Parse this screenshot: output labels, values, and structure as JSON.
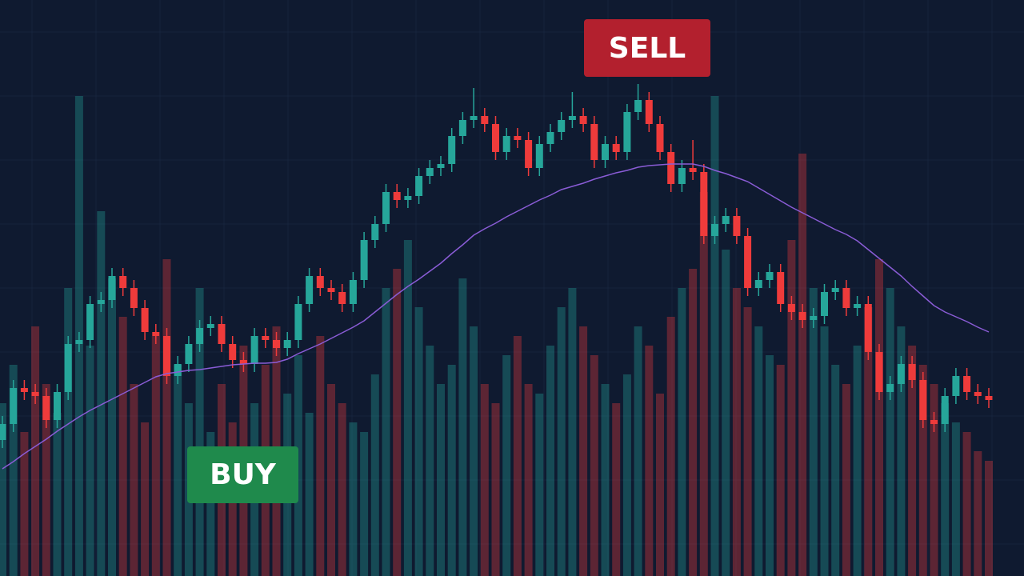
{
  "chart_data": {
    "type": "candlestick",
    "up_color": "#26a69a",
    "down_color": "#ef3b3b",
    "grid": true,
    "grid_color": "#16233c",
    "ylim": [
      0,
      720
    ],
    "y2lim": [
      0,
      600
    ],
    "open": [
      170,
      190,
      235,
      230,
      225,
      195,
      230,
      290,
      295,
      340,
      345,
      375,
      360,
      335,
      305,
      300,
      250,
      265,
      290,
      310,
      315,
      290,
      270,
      265,
      300,
      295,
      285,
      295,
      340,
      375,
      360,
      355,
      340,
      370,
      420,
      440,
      480,
      470,
      475,
      500,
      510,
      515,
      550,
      570,
      575,
      565,
      530,
      550,
      545,
      510,
      540,
      555,
      570,
      575,
      565,
      520,
      540,
      530,
      580,
      595,
      565,
      530,
      490,
      510,
      505,
      425,
      440,
      450,
      425,
      360,
      370,
      380,
      340,
      330,
      320,
      325,
      355,
      360,
      335,
      340,
      280,
      230,
      240,
      265,
      245,
      195,
      190,
      225,
      250,
      230,
      225
    ],
    "high": [
      200,
      245,
      245,
      240,
      235,
      240,
      300,
      305,
      350,
      355,
      385,
      385,
      370,
      345,
      315,
      310,
      275,
      300,
      320,
      325,
      325,
      300,
      280,
      310,
      310,
      305,
      305,
      350,
      385,
      385,
      370,
      365,
      380,
      430,
      450,
      490,
      490,
      485,
      510,
      520,
      525,
      560,
      580,
      610,
      585,
      575,
      560,
      560,
      555,
      550,
      565,
      580,
      605,
      585,
      575,
      550,
      550,
      590,
      615,
      605,
      575,
      540,
      520,
      545,
      515,
      450,
      460,
      460,
      435,
      380,
      390,
      390,
      350,
      340,
      335,
      365,
      370,
      370,
      350,
      350,
      290,
      250,
      275,
      275,
      255,
      205,
      235,
      260,
      260,
      240,
      235
    ],
    "low": [
      160,
      180,
      220,
      215,
      185,
      185,
      220,
      280,
      285,
      330,
      335,
      350,
      325,
      295,
      290,
      240,
      240,
      255,
      280,
      300,
      280,
      260,
      255,
      255,
      285,
      275,
      275,
      285,
      330,
      350,
      345,
      330,
      330,
      360,
      410,
      430,
      460,
      460,
      465,
      490,
      500,
      505,
      540,
      560,
      555,
      520,
      520,
      535,
      500,
      500,
      530,
      545,
      560,
      555,
      510,
      510,
      520,
      520,
      570,
      555,
      520,
      480,
      480,
      495,
      415,
      415,
      430,
      415,
      350,
      350,
      360,
      330,
      320,
      310,
      310,
      315,
      345,
      325,
      325,
      270,
      220,
      220,
      230,
      235,
      185,
      180,
      180,
      215,
      220,
      215,
      210
    ],
    "close": [
      190,
      235,
      230,
      225,
      195,
      230,
      290,
      295,
      340,
      345,
      375,
      360,
      335,
      305,
      300,
      250,
      265,
      290,
      310,
      315,
      290,
      270,
      265,
      300,
      295,
      285,
      295,
      340,
      375,
      360,
      355,
      340,
      370,
      420,
      440,
      480,
      470,
      475,
      500,
      510,
      515,
      550,
      570,
      575,
      565,
      530,
      550,
      545,
      510,
      540,
      555,
      570,
      575,
      565,
      520,
      540,
      530,
      580,
      595,
      565,
      530,
      490,
      510,
      505,
      425,
      440,
      450,
      425,
      360,
      370,
      380,
      340,
      330,
      320,
      325,
      355,
      360,
      335,
      340,
      280,
      230,
      240,
      265,
      245,
      195,
      190,
      225,
      250,
      230,
      225,
      220
    ],
    "moving_average": {
      "color": "#8a5cd6",
      "values": [
        134,
        143,
        153,
        162,
        171,
        181,
        190,
        199,
        207,
        214,
        221,
        228,
        235,
        242,
        249,
        253,
        255,
        257,
        258,
        260,
        262,
        264,
        265,
        266,
        266,
        267,
        271,
        278,
        284,
        290,
        297,
        304,
        311,
        319,
        330,
        341,
        352,
        362,
        371,
        381,
        391,
        403,
        414,
        426,
        434,
        441,
        449,
        456,
        463,
        470,
        476,
        483,
        487,
        491,
        496,
        500,
        504,
        507,
        511,
        513,
        514,
        515,
        515,
        515,
        512,
        507,
        503,
        498,
        493,
        485,
        477,
        469,
        461,
        454,
        447,
        440,
        433,
        427,
        419,
        408,
        397,
        386,
        375,
        362,
        350,
        338,
        330,
        324,
        318,
        311,
        305
      ]
    },
    "volume": {
      "axis": "y2",
      "values": [
        180,
        220,
        150,
        260,
        200,
        170,
        300,
        500,
        240,
        380,
        310,
        270,
        200,
        160,
        250,
        330,
        220,
        180,
        300,
        150,
        200,
        160,
        240,
        180,
        220,
        260,
        190,
        230,
        170,
        250,
        200,
        180,
        160,
        150,
        210,
        300,
        320,
        350,
        280,
        240,
        200,
        220,
        310,
        260,
        200,
        180,
        230,
        250,
        200,
        190,
        240,
        280,
        300,
        260,
        230,
        200,
        180,
        210,
        260,
        240,
        190,
        270,
        300,
        320,
        400,
        500,
        340,
        300,
        280,
        260,
        230,
        220,
        350,
        440,
        300,
        260,
        220,
        200,
        240,
        280,
        330,
        300,
        260,
        240,
        220,
        200,
        180,
        160,
        150,
        130,
        120
      ]
    },
    "annotations": [
      "SELL",
      "BUY"
    ],
    "annotation_colors": [
      "#b3202e",
      "#1f8a4c"
    ]
  }
}
